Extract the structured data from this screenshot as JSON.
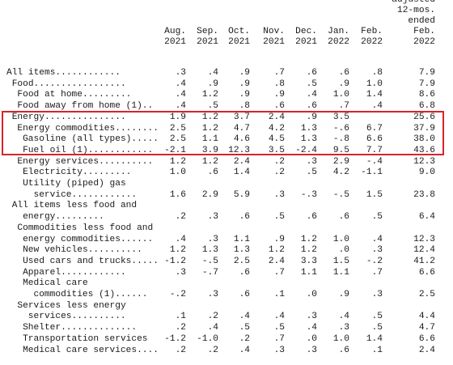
{
  "header": {
    "cols": [
      [
        "",
        "Aug.",
        "2021"
      ],
      [
        "",
        "Sep.",
        "2021"
      ],
      [
        "",
        "Oct.",
        "2021"
      ],
      [
        "",
        "Nov.",
        "2021"
      ],
      [
        "",
        "Dec.",
        "2021"
      ],
      [
        "",
        "Jan.",
        "2022"
      ],
      [
        "",
        "Feb.",
        "2022"
      ],
      [
        "adjusted",
        "12-mos.",
        "ended",
        "Feb.",
        "2022"
      ]
    ]
  },
  "rows": [
    {
      "label": "All items............",
      "indent": 0,
      "values": [
        ".3",
        ".4",
        ".9",
        ".7",
        ".6",
        ".6",
        ".8",
        "7.9"
      ]
    },
    {
      "label": "Food.................",
      "indent": 1,
      "values": [
        ".4",
        ".9",
        ".9",
        ".8",
        ".5",
        ".9",
        "1.0",
        "7.9"
      ]
    },
    {
      "label": "Food at home.........",
      "indent": 2,
      "values": [
        ".4",
        "1.2",
        ".9",
        ".9",
        ".4",
        "1.0",
        "1.4",
        "8.6"
      ]
    },
    {
      "label": "Food away from home (1)..",
      "indent": 2,
      "values": [
        ".4",
        ".5",
        ".8",
        ".6",
        ".6",
        ".7",
        ".4",
        "6.8"
      ]
    },
    {
      "label": "Energy...............",
      "indent": 1,
      "values": [
        "1.9",
        "1.2",
        "3.7",
        "2.4",
        ".9",
        "3.5",
        "",
        "25.6"
      ]
    },
    {
      "label": "Energy commodities.........",
      "indent": 2,
      "values": [
        "2.5",
        "1.2",
        "4.7",
        "4.2",
        "1.3",
        "-.6",
        "6.7",
        "37.9"
      ]
    },
    {
      "label": "Gasoline (all types)......",
      "indent": 3,
      "values": [
        "2.5",
        "1.1",
        "4.6",
        "4.5",
        "1.3",
        "-.8",
        "6.6",
        "38.0"
      ]
    },
    {
      "label": "Fuel oil (1)............",
      "indent": 3,
      "values": [
        "-2.1",
        "3.9",
        "12.3",
        "3.5",
        "-2.4",
        "9.5",
        "7.7",
        "43.6"
      ]
    },
    {
      "label": "Energy services..........",
      "indent": 2,
      "values": [
        "1.2",
        "1.2",
        "2.4",
        ".2",
        ".3",
        "2.9",
        "-.4",
        "12.3"
      ]
    },
    {
      "label": "Electricity.........",
      "indent": 3,
      "values": [
        "1.0",
        ".6",
        "1.4",
        ".2",
        ".5",
        "4.2",
        "-1.1",
        "9.0"
      ]
    },
    {
      "label": "Utility (piped) gas",
      "indent": 3,
      "values": []
    },
    {
      "label": "service............",
      "indent": 5,
      "values": [
        "1.6",
        "2.9",
        "5.9",
        ".3",
        "-.3",
        "-.5",
        "1.5",
        "23.8"
      ]
    },
    {
      "label": "All items less food and",
      "indent": 1,
      "values": []
    },
    {
      "label": "energy.........",
      "indent": 3,
      "values": [
        ".2",
        ".3",
        ".6",
        ".5",
        ".6",
        ".6",
        ".5",
        "6.4"
      ]
    },
    {
      "label": "Commodities less food and",
      "indent": 2,
      "values": []
    },
    {
      "label": "energy commodities......",
      "indent": 3,
      "values": [
        ".4",
        ".3",
        "1.1",
        ".9",
        "1.2",
        "1.0",
        ".4",
        "12.3"
      ]
    },
    {
      "label": "New vehicles..........",
      "indent": 3,
      "values": [
        "1.2",
        "1.3",
        "1.3",
        "1.2",
        "1.2",
        ".0",
        ".3",
        "12.4"
      ]
    },
    {
      "label": "Used cars and trucks.....",
      "indent": 3,
      "values": [
        "-1.2",
        "-.5",
        "2.5",
        "2.4",
        "3.3",
        "1.5",
        "-.2",
        "41.2"
      ]
    },
    {
      "label": "Apparel............",
      "indent": 3,
      "values": [
        ".3",
        "-.7",
        ".6",
        ".7",
        "1.1",
        "1.1",
        ".7",
        "6.6"
      ]
    },
    {
      "label": "Medical care",
      "indent": 3,
      "values": []
    },
    {
      "label": "commodities (1)......",
      "indent": 5,
      "values": [
        "-.2",
        ".3",
        ".6",
        ".1",
        ".0",
        ".9",
        ".3",
        "2.5"
      ]
    },
    {
      "label": "Services less energy",
      "indent": 2,
      "values": []
    },
    {
      "label": "services..........",
      "indent": 4,
      "values": [
        ".1",
        ".2",
        ".4",
        ".4",
        ".3",
        ".4",
        ".5",
        "4.4"
      ]
    },
    {
      "label": "Shelter..............",
      "indent": 3,
      "values": [
        ".2",
        ".4",
        ".5",
        ".5",
        ".4",
        ".3",
        ".5",
        "4.7"
      ]
    },
    {
      "label": "Transportation services",
      "indent": 3,
      "values": [
        "-1.2",
        "-1.0",
        ".2",
        ".7",
        ".0",
        "1.0",
        "1.4",
        "6.6"
      ]
    },
    {
      "label": "Medical care services....",
      "indent": 3,
      "values": [
        ".2",
        ".2",
        ".4",
        ".3",
        ".3",
        ".6",
        ".1",
        "2.4"
      ]
    }
  ]
}
